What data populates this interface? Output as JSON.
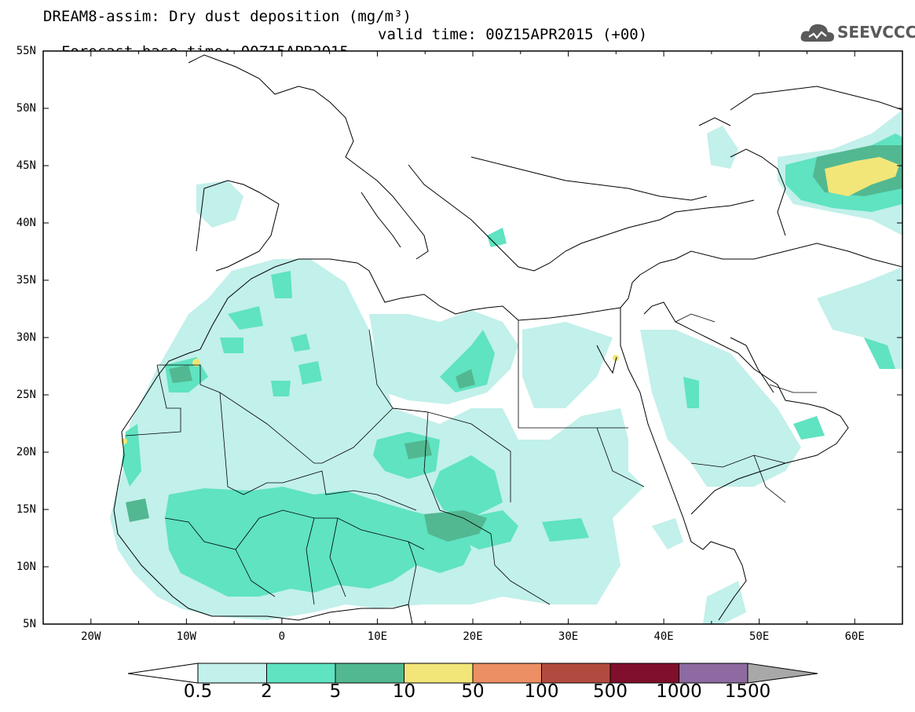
{
  "title": {
    "line1": "DREAM8-assim: Dry dust deposition (mg/m³)",
    "line2_base": "Forecast base time: 00Z15APR2015",
    "line2_valid": "valid time: 00Z15APR2015 (+00)"
  },
  "logo": {
    "text": "SEEVCCC"
  },
  "axes": {
    "lat_labels": [
      "55N",
      "50N",
      "45N",
      "40N",
      "35N",
      "30N",
      "25N",
      "20N",
      "15N",
      "10N",
      "5N"
    ],
    "lon_labels": [
      "20W",
      "10W",
      "0",
      "10E",
      "20E",
      "30E",
      "40E",
      "50E",
      "60E"
    ],
    "lon_range": [
      -25,
      65
    ],
    "lat_range": [
      5,
      55
    ]
  },
  "colorbar": {
    "labels": [
      "0.5",
      "2",
      "5",
      "10",
      "50",
      "100",
      "500",
      "1000",
      "1500"
    ],
    "colors": [
      "#c2f0ea",
      "#5fe3c0",
      "#52b891",
      "#f2e679",
      "#ec8f64",
      "#b24b3f",
      "#7f0f2c",
      "#8d6aa1"
    ],
    "over_color": "#a8a8a8",
    "under_color": "#ffffff"
  }
}
